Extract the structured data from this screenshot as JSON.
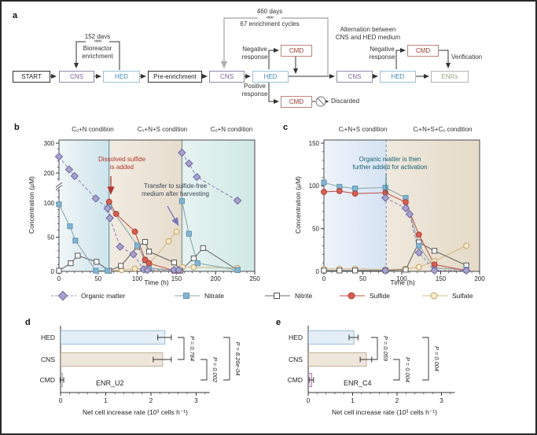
{
  "panels": {
    "a": "a",
    "b": "b",
    "c": "c",
    "d": "d",
    "e": "e"
  },
  "flowchart": {
    "start": "START",
    "cns": "CNS",
    "hed": "HED",
    "pre_enrichment": "Pre-enrichment",
    "cmd": "CMD",
    "enrs": "ENRs",
    "days152": "152 days",
    "bioreactor_l1": "Bioreactor",
    "bioreactor_l2": "enrichment",
    "days460": "460 days",
    "cycles67": "67 enrichment cycles",
    "alternation_l1": "Alternation between",
    "alternation_l2": "CNS and HED medium",
    "negative_l1": "Negative",
    "negative_l2": "response",
    "positive_l1": "Positive",
    "positive_l2": "response",
    "verification": "Verification",
    "discarded": "Discarded",
    "chevrons": "«««",
    "colors": {
      "cns_text": "#7b5fa5",
      "hed_text": "#3f8fc0",
      "cmd_text": "#b5352c",
      "enrs_text": "#97a97c",
      "loop_gray": "#b0b0b0"
    }
  },
  "chart_data": [
    {
      "id": "b",
      "type": "line",
      "conditions": [
        "Cₒ+N condition",
        "Cₒ+N+S condition",
        "Cₒ+N condition"
      ],
      "xlabel": "Time (h)",
      "ylabel": "Concentration (μM)",
      "x_ticks": [
        0,
        50,
        100,
        150,
        200,
        250
      ],
      "y_ticks": [
        0,
        50,
        100,
        200,
        300
      ],
      "xlim": [
        0,
        250
      ],
      "ylim": [
        0,
        300
      ],
      "y_break": true,
      "regions": [
        {
          "x0": 0,
          "x1": 64,
          "c1": "#f0f6f7",
          "c2": "#cde4ec"
        },
        {
          "x0": 64,
          "x1": 157,
          "c1": "#f1ebe1",
          "c2": "#e7ddcd"
        },
        {
          "x0": 157,
          "x1": 250,
          "c1": "#e6f3f1",
          "c2": "#d0e9e5"
        }
      ],
      "vlines": [
        {
          "x": 64,
          "style": "solid",
          "color": "#4f8f9f",
          "meaning": "dissolved sulfide added"
        },
        {
          "x": 157,
          "style": "solid",
          "color": "#9fa9ad",
          "meaning": "transfer to sulfide-free medium"
        }
      ],
      "annotations": [
        {
          "name": "sulfide-added",
          "lines": [
            "Dissolved sulfide",
            "is added"
          ],
          "color": "#b5352c"
        },
        {
          "name": "transfer",
          "lines": [
            "Transfer to sulfide-free",
            "medium after harvesting"
          ],
          "color": "#3a4754"
        }
      ],
      "series": [
        {
          "name": "Organic matter",
          "points": [
            [
              0,
              255
            ],
            [
              13,
              212
            ],
            [
              20,
              190
            ],
            [
              47,
              115
            ],
            [
              62,
              92
            ],
            [
              65,
              78
            ],
            [
              78,
              36
            ],
            [
              95,
              25
            ],
            [
              108,
              3
            ],
            [
              113,
              2
            ],
            [
              147,
              2
            ],
            [
              153,
              2
            ],
            null,
            [
              157,
              268
            ],
            [
              166,
              232
            ],
            [
              176,
              187
            ],
            [
              228,
              108
            ]
          ]
        },
        {
          "name": "Nitrate",
          "points": [
            [
              0,
              98
            ],
            [
              14,
              66
            ],
            [
              21,
              45
            ],
            [
              47,
              1
            ],
            [
              62,
              1
            ],
            null,
            [
              64,
              96
            ],
            [
              100,
              38
            ],
            [
              110,
              16
            ],
            [
              115,
              5
            ],
            [
              147,
              1
            ],
            [
              153,
              1
            ],
            null,
            [
              157,
              106
            ],
            [
              166,
              55
            ],
            [
              177,
              12
            ],
            [
              228,
              2
            ]
          ]
        },
        {
          "name": "Nitrite",
          "points": [
            [
              0,
              1
            ],
            [
              15,
              12
            ],
            [
              24,
              23
            ],
            [
              48,
              14
            ],
            [
              64,
              1
            ],
            [
              79,
              8
            ],
            [
              100,
              36
            ],
            [
              110,
              43
            ],
            [
              115,
              29
            ],
            [
              147,
              13
            ],
            [
              155,
              1
            ],
            [
              172,
              19
            ],
            [
              184,
              34
            ],
            [
              228,
              2
            ]
          ]
        },
        {
          "name": "Sulfide",
          "points": [
            [
              64,
              104
            ],
            [
              73,
              84
            ],
            [
              97,
              58
            ],
            [
              110,
              17
            ],
            [
              115,
              12
            ],
            [
              147,
              1
            ],
            [
              153,
              1
            ]
          ]
        },
        {
          "name": "Sulfate",
          "points": [
            [
              64,
              1
            ],
            [
              80,
              2
            ],
            [
              97,
              4
            ],
            [
              110,
              4
            ],
            [
              140,
              44
            ],
            [
              150,
              58
            ],
            null,
            [
              158,
              6
            ],
            [
              172,
              6
            ],
            [
              228,
              5
            ]
          ]
        }
      ]
    },
    {
      "id": "c",
      "type": "line",
      "conditions": [
        "Cᵢ+N+S condition",
        "Cᵢ+N+S+Cₒ condition"
      ],
      "xlabel": "Time (h)",
      "ylabel": "Concentration (μM)",
      "x_ticks": [
        0,
        50,
        100,
        150,
        200
      ],
      "y_ticks": [
        0,
        50,
        100,
        150
      ],
      "xlim": [
        0,
        200
      ],
      "ylim": [
        0,
        150
      ],
      "y_break": false,
      "regions": [
        {
          "x0": 0,
          "x1": 80,
          "c1": "#f0f4fa",
          "c2": "#d5e3f3"
        },
        {
          "x0": 80,
          "x1": 200,
          "c1": "#efe9de",
          "c2": "#e5dac7"
        }
      ],
      "vlines": [
        {
          "x": 80,
          "style": "dashed",
          "color": "#7d8da0",
          "meaning": "organic matter added"
        }
      ],
      "annotations": [
        {
          "name": "organic-added",
          "lines": [
            "Organic matter is then",
            "further added for activation"
          ],
          "color": "#14646f"
        }
      ],
      "series": [
        {
          "name": "Organic matter",
          "points": [
            [
              79,
              1
            ],
            null,
            [
              79,
              86
            ],
            [
              105,
              74
            ],
            [
              110,
              67
            ],
            [
              122,
              22
            ],
            [
              142,
              1
            ],
            [
              183,
              1
            ]
          ]
        },
        {
          "name": "Nitrate",
          "points": [
            [
              0,
              104
            ],
            [
              20,
              99
            ],
            [
              40,
              97
            ],
            [
              79,
              98
            ],
            [
              105,
              86
            ],
            [
              122,
              30
            ],
            [
              142,
              4
            ],
            [
              183,
              2
            ]
          ]
        },
        {
          "name": "Nitrite",
          "points": [
            [
              0,
              1
            ],
            [
              20,
              1
            ],
            [
              40,
              1
            ],
            [
              79,
              1
            ],
            [
              105,
              2
            ],
            [
              122,
              34
            ],
            [
              142,
              24
            ],
            [
              183,
              7
            ]
          ]
        },
        {
          "name": "Sulfide",
          "points": [
            [
              0,
              93
            ],
            [
              20,
              94
            ],
            [
              40,
              91
            ],
            [
              79,
              92
            ],
            [
              105,
              81
            ],
            [
              122,
              43
            ],
            [
              142,
              8
            ],
            [
              183,
              1
            ]
          ]
        },
        {
          "name": "Sulfate",
          "points": [
            [
              0,
              3
            ],
            [
              20,
              3
            ],
            [
              40,
              3
            ],
            [
              79,
              2
            ],
            [
              105,
              3
            ],
            [
              122,
              5
            ],
            [
              142,
              12
            ],
            [
              183,
              30
            ]
          ]
        }
      ]
    },
    {
      "id": "d",
      "type": "bar",
      "categories": [
        "HED",
        "CNS",
        "CMD"
      ],
      "values": [
        2.3,
        2.25,
        0.03
      ],
      "errors": [
        0.15,
        0.2,
        0.04
      ],
      "bar_colors": [
        {
          "fill": "#e3eef7",
          "stroke": "#9cc0d8"
        },
        {
          "fill": "#eee6da",
          "stroke": "#c3b098"
        },
        {
          "fill": "#f7f5f2",
          "stroke": "#9a9a9a"
        }
      ],
      "sample_label": "ENR_U2",
      "xlabel": "Net cell increase rate (10³ cells h⁻¹)",
      "x_ticks": [
        0,
        1,
        2,
        3
      ],
      "xlim": [
        0,
        3.3
      ],
      "pvalues": [
        {
          "pair": [
            0,
            1
          ],
          "label": "P = 0.784"
        },
        {
          "pair": [
            1,
            2
          ],
          "label": "P = 0.002"
        },
        {
          "pair": [
            0,
            2
          ],
          "label": "P = 8.26e-04"
        }
      ]
    },
    {
      "id": "e",
      "type": "bar",
      "categories": [
        "HED",
        "CNS",
        "CMD"
      ],
      "values": [
        1.02,
        1.3,
        0.07
      ],
      "errors": [
        0.1,
        0.13,
        0.05
      ],
      "bar_colors": [
        {
          "fill": "#e3eef7",
          "stroke": "#9cc0d8"
        },
        {
          "fill": "#eee6da",
          "stroke": "#c3b098"
        },
        {
          "fill": "#ecdcec",
          "stroke": "#b08cb0"
        }
      ],
      "sample_label": "ENR_C4",
      "xlabel": "Net cell increase rate (10³ cells h⁻¹)",
      "x_ticks": [
        0,
        1,
        2,
        3
      ],
      "xlim": [
        0,
        3.3
      ],
      "pvalues": [
        {
          "pair": [
            0,
            1
          ],
          "label": "P = 0.059"
        },
        {
          "pair": [
            1,
            2
          ],
          "label": "P = 0.004"
        },
        {
          "pair": [
            0,
            2
          ],
          "label": "P = 0.004"
        }
      ]
    }
  ]
}
